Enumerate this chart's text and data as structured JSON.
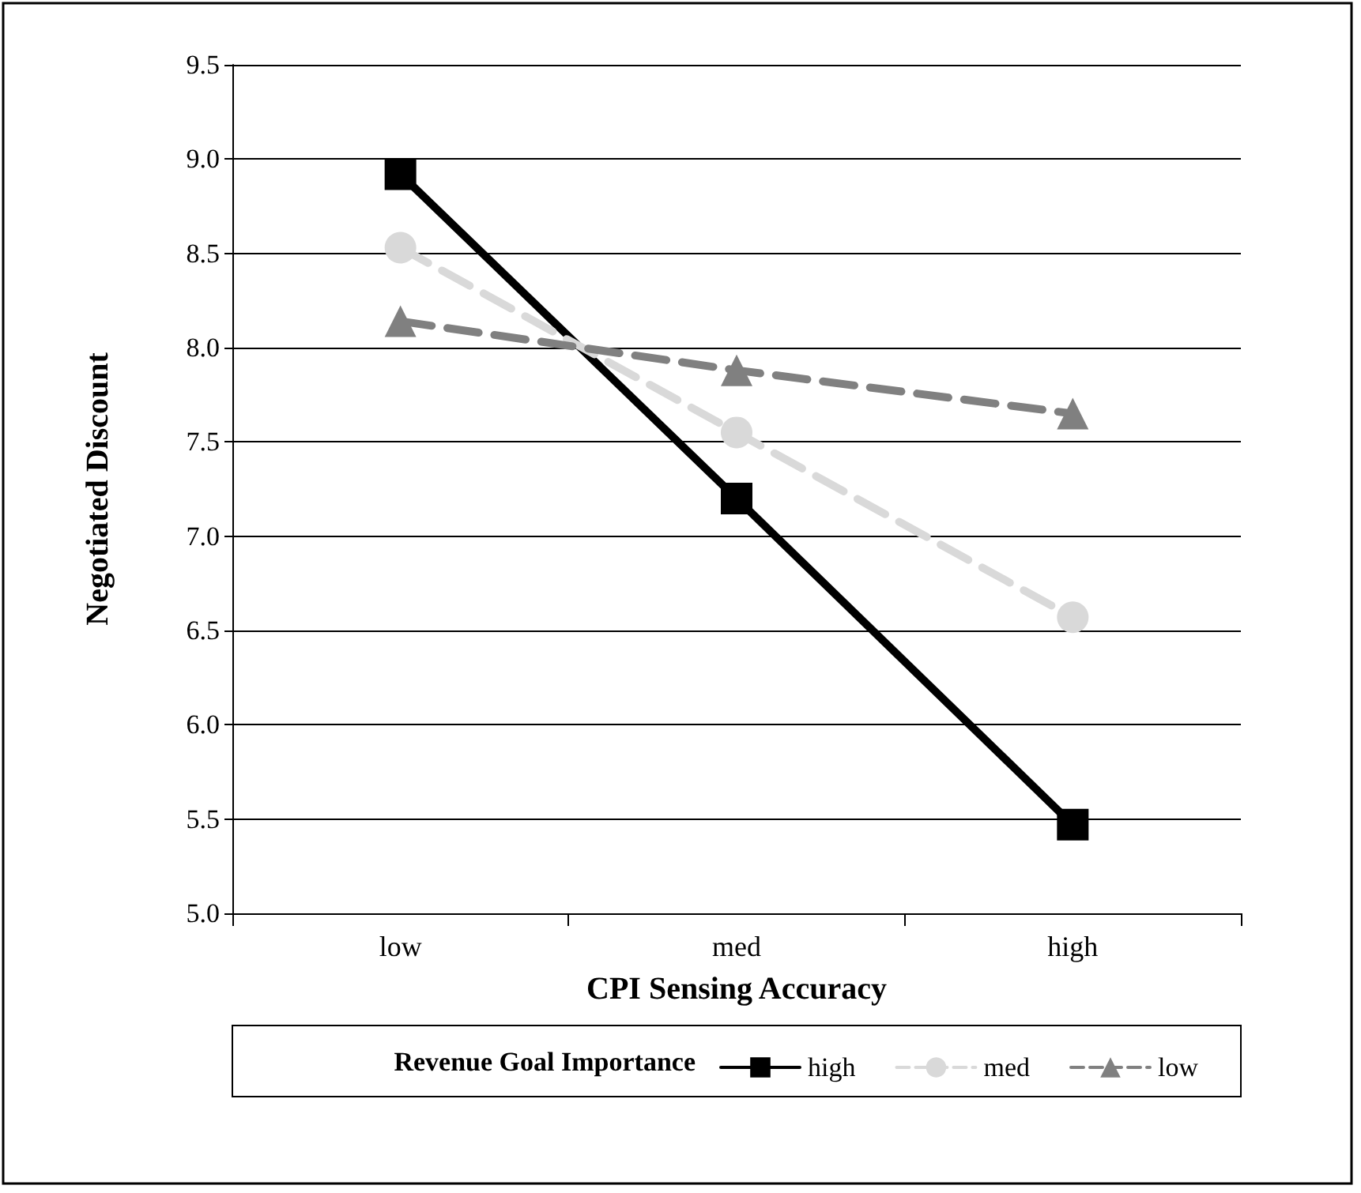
{
  "chart_data": {
    "type": "line",
    "xlabel": "CPI Sensing Accuracy",
    "ylabel": "Negotiated Discount",
    "legend_title": "Revenue Goal Importance",
    "categories": [
      "low",
      "med",
      "high"
    ],
    "series": [
      {
        "name": "high",
        "color": "#000000",
        "values": [
          8.92,
          7.2,
          5.47
        ],
        "marker": "square",
        "line_style": "solid"
      },
      {
        "name": "med",
        "color": "#d9d9d9",
        "values": [
          8.53,
          7.55,
          6.57
        ],
        "marker": "circle",
        "line_style": "dashed"
      },
      {
        "name": "low",
        "color": "#808080",
        "values": [
          8.14,
          7.88,
          7.65
        ],
        "marker": "triangle",
        "line_style": "dashed"
      }
    ],
    "ylim": [
      5,
      9.5
    ],
    "yticks": [
      {
        "value": 5,
        "label": "5.0"
      },
      {
        "value": 5.5,
        "label": "5.5"
      },
      {
        "value": 6,
        "label": "6.0"
      },
      {
        "value": 6.5,
        "label": "6.5"
      },
      {
        "value": 7,
        "label": "7.0"
      },
      {
        "value": 7.5,
        "label": "7.5"
      },
      {
        "value": 8,
        "label": "8.0"
      },
      {
        "value": 8.5,
        "label": "8.5"
      },
      {
        "value": 9,
        "label": "9.0"
      },
      {
        "value": 9.5,
        "label": "9.5"
      }
    ],
    "grid": "y",
    "legend": "bottom"
  }
}
